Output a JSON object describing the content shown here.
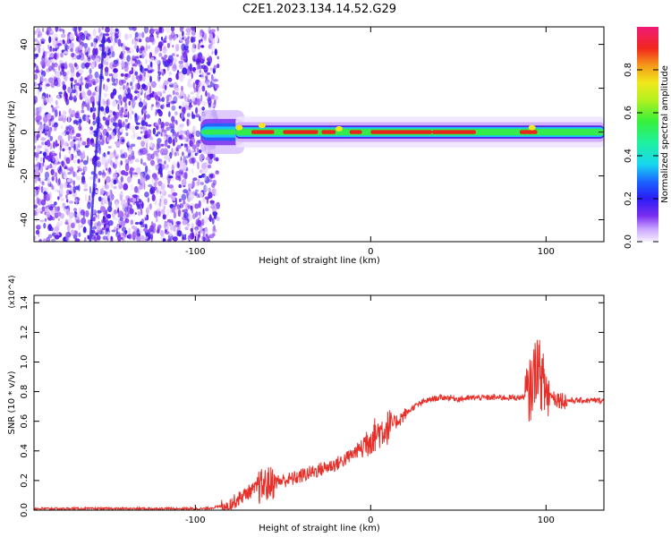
{
  "title": "C2E1.2023.134.14.52.G29",
  "colors": {
    "snr_line": "#e8302a",
    "axis": "#000000",
    "noise_purple": "#6a1fe0",
    "track_red": "#e8261c",
    "track_green": "#34e84a"
  },
  "chart_data": [
    {
      "type": "heatmap",
      "title": "C2E1.2023.134.14.52.G29",
      "xlabel": "Height of straight line (km)",
      "ylabel": "Frequency (Hz)",
      "xlim": [
        -192,
        133
      ],
      "ylim": [
        -50,
        48
      ],
      "xticks": [
        -100,
        0,
        100
      ],
      "yticks": [
        -40,
        -20,
        0,
        20,
        40
      ],
      "colorbar": {
        "label": "Normalized spectral amplitude",
        "range": [
          0.0,
          1.0
        ],
        "ticks": [
          0.0,
          0.2,
          0.4,
          0.6,
          0.8
        ],
        "colormap": "rainbow (purple to red/pink)"
      },
      "features": {
        "noise_region_x": [
          -192,
          -87
        ],
        "signal_track_frequency_hz": 0,
        "signal_track_x": [
          -87,
          133
        ]
      }
    },
    {
      "type": "line",
      "xlabel": "Height of straight line (km)",
      "ylabel": "SNR (10 * v/v)",
      "y_multiplier": "(x10^4)",
      "xlim": [
        -192,
        133
      ],
      "ylim": [
        0,
        1.45
      ],
      "xticks": [
        -100,
        0,
        100
      ],
      "yticks": [
        0.0,
        0.2,
        0.4,
        0.6,
        0.8,
        1.0,
        1.2,
        1.4
      ],
      "series": [
        {
          "x": [
            -192,
            -160,
            -130,
            -110,
            -95,
            -88,
            -80,
            -75,
            -70,
            -65,
            -60,
            -55,
            -50,
            -45,
            -40,
            -35,
            -30,
            -25,
            -20,
            -15,
            -10,
            -5,
            0,
            5,
            10,
            15,
            20,
            25,
            30,
            35,
            40,
            45,
            50,
            60,
            70,
            80,
            85,
            90,
            93,
            95,
            97,
            100,
            105,
            110,
            115,
            120,
            125,
            133
          ],
          "y": [
            0.01,
            0.01,
            0.01,
            0.01,
            0.01,
            0.02,
            0.04,
            0.08,
            0.12,
            0.15,
            0.17,
            0.19,
            0.2,
            0.21,
            0.23,
            0.25,
            0.27,
            0.29,
            0.31,
            0.34,
            0.38,
            0.43,
            0.49,
            0.53,
            0.56,
            0.6,
            0.65,
            0.7,
            0.73,
            0.75,
            0.76,
            0.76,
            0.75,
            0.76,
            0.76,
            0.76,
            0.76,
            0.77,
            0.9,
            1.0,
            0.9,
            0.8,
            0.76,
            0.74,
            0.74,
            0.74,
            0.74,
            0.74
          ]
        }
      ]
    }
  ]
}
